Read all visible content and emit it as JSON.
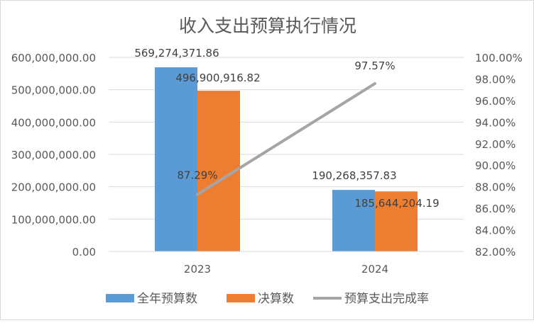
{
  "chart_data": {
    "type": "bar",
    "title": "收入支出预算执行情况",
    "categories": [
      "2023",
      "2024"
    ],
    "series": [
      {
        "name": "全年预算数",
        "type": "bar",
        "axis": "left",
        "color": "#5b9bd5",
        "values": [
          569274371.86,
          190268357.83
        ],
        "labels": [
          "569,274,371.86",
          "190,268,357.83"
        ]
      },
      {
        "name": "决算数",
        "type": "bar",
        "axis": "left",
        "color": "#ed7d31",
        "values": [
          496900916.82,
          185644204.19
        ],
        "labels": [
          "496,900,916.82",
          "185,644,204.19"
        ]
      },
      {
        "name": "预算支出完成率",
        "type": "line",
        "axis": "right",
        "color": "#a5a5a5",
        "values": [
          87.29,
          97.57
        ],
        "labels": [
          "87.29%",
          "97.57%"
        ]
      }
    ],
    "y_left": {
      "ylim": [
        0,
        600000000
      ],
      "ticks": [
        0,
        100000000,
        200000000,
        300000000,
        400000000,
        500000000,
        600000000
      ],
      "tick_labels": [
        "0.00",
        "100,000,000.00",
        "200,000,000.00",
        "300,000,000.00",
        "400,000,000.00",
        "500,000,000.00",
        "600,000,000.00"
      ]
    },
    "y_right": {
      "ylim": [
        82,
        100
      ],
      "ticks": [
        82,
        84,
        86,
        88,
        90,
        92,
        94,
        96,
        98,
        100
      ],
      "tick_labels": [
        "82.00%",
        "84.00%",
        "86.00%",
        "88.00%",
        "90.00%",
        "92.00%",
        "94.00%",
        "96.00%",
        "98.00%",
        "100.00%"
      ]
    },
    "grid": true,
    "legend": "bottom"
  }
}
